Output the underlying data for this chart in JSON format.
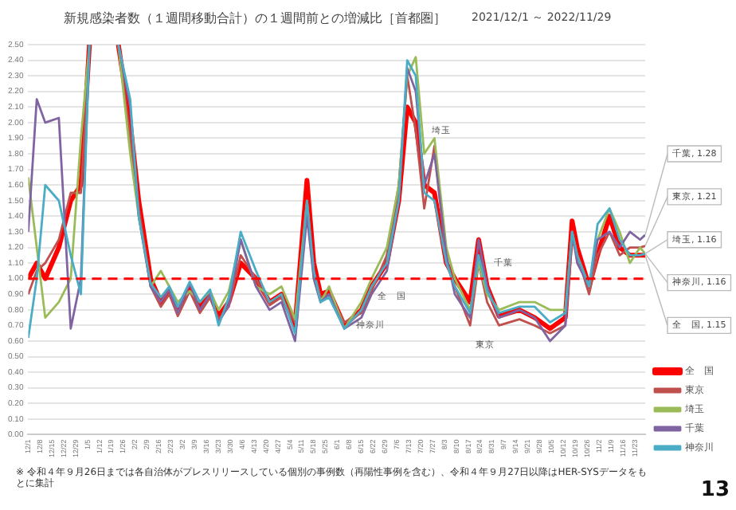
{
  "chart_data": {
    "type": "line",
    "title": "新規感染者数（１週間移動合計）の１週間前との増減比［首都圏］",
    "subtitle": "2021/12/1 ～ 2022/11/29",
    "x": [
      "2021-12-01",
      "2021-12-06",
      "2021-12-11",
      "2021-12-19",
      "2021-12-26",
      "2022-01-01",
      "2022-01-06",
      "2022-01-15",
      "2022-01-23",
      "2022-01-30",
      "2022-02-04",
      "2022-02-11",
      "2022-02-17",
      "2022-02-22",
      "2022-02-27",
      "2022-03-06",
      "2022-03-12",
      "2022-03-18",
      "2022-03-23",
      "2022-03-29",
      "2022-04-05",
      "2022-04-14",
      "2022-04-22",
      "2022-04-29",
      "2022-05-07",
      "2022-05-14",
      "2022-05-18",
      "2022-05-22",
      "2022-05-27",
      "2022-06-05",
      "2022-06-15",
      "2022-06-21",
      "2022-06-30",
      "2022-07-07",
      "2022-07-12",
      "2022-07-17",
      "2022-07-22",
      "2022-07-28",
      "2022-08-04",
      "2022-08-09",
      "2022-08-18",
      "2022-08-23",
      "2022-08-28",
      "2022-09-04",
      "2022-09-16",
      "2022-09-25",
      "2022-10-04",
      "2022-10-13",
      "2022-10-17",
      "2022-10-20",
      "2022-10-27",
      "2022-11-01",
      "2022-11-08",
      "2022-11-14",
      "2022-11-20",
      "2022-11-26",
      "2022-11-29"
    ],
    "series": [
      {
        "name": "全　国",
        "color": "#ff0000",
        "values": [
          1.0,
          1.1,
          1.0,
          1.2,
          1.5,
          1.6,
          2.5,
          null,
          2.5,
          2.0,
          1.5,
          1.0,
          0.85,
          0.92,
          0.8,
          0.95,
          0.82,
          0.9,
          0.76,
          0.85,
          1.1,
          1.0,
          0.85,
          0.9,
          0.7,
          1.63,
          1.1,
          0.9,
          0.92,
          0.7,
          0.8,
          0.95,
          1.1,
          1.5,
          2.1,
          2.0,
          1.6,
          1.55,
          1.1,
          1.0,
          0.85,
          1.25,
          0.95,
          0.76,
          0.8,
          0.75,
          0.68,
          0.75,
          1.37,
          1.2,
          0.95,
          1.15,
          1.4,
          1.2,
          1.15,
          1.15,
          1.15
        ]
      },
      {
        "name": "東京",
        "color": "#c0504d",
        "values": [
          0.9,
          1.05,
          1.1,
          1.25,
          1.55,
          1.55,
          2.5,
          null,
          2.5,
          1.9,
          1.45,
          0.95,
          0.82,
          0.9,
          0.76,
          0.92,
          0.78,
          0.88,
          0.74,
          0.82,
          1.15,
          1.0,
          0.83,
          0.88,
          0.72,
          1.45,
          1.05,
          0.88,
          0.9,
          0.72,
          0.78,
          0.92,
          1.15,
          1.6,
          2.3,
          1.95,
          1.45,
          1.85,
          1.1,
          0.95,
          0.7,
          1.1,
          0.85,
          0.7,
          0.74,
          0.7,
          0.65,
          0.7,
          1.25,
          1.15,
          0.9,
          1.15,
          1.3,
          1.15,
          1.2,
          1.2,
          1.21
        ]
      },
      {
        "name": "埼玉",
        "color": "#9bbb59",
        "values": [
          1.65,
          1.2,
          0.75,
          0.85,
          1.0,
          1.9,
          2.5,
          null,
          2.5,
          1.8,
          1.4,
          0.95,
          1.05,
          0.95,
          0.85,
          0.92,
          0.85,
          0.92,
          0.8,
          0.92,
          1.25,
          0.95,
          0.9,
          0.95,
          0.74,
          1.5,
          1.0,
          0.85,
          0.95,
          0.68,
          0.85,
          1.0,
          1.2,
          1.6,
          2.3,
          2.42,
          1.8,
          1.9,
          1.2,
          1.0,
          0.8,
          1.1,
          0.9,
          0.8,
          0.85,
          0.85,
          0.8,
          0.8,
          1.3,
          1.15,
          0.95,
          1.25,
          1.45,
          1.3,
          1.1,
          1.2,
          1.16
        ]
      },
      {
        "name": "千葉",
        "color": "#8064a2",
        "values": [
          1.3,
          2.15,
          2.0,
          2.03,
          0.68,
          1.0,
          2.5,
          null,
          2.5,
          2.1,
          1.4,
          0.95,
          0.85,
          0.93,
          0.78,
          0.97,
          0.8,
          0.9,
          0.72,
          0.83,
          1.25,
          0.95,
          0.8,
          0.85,
          0.6,
          1.4,
          1.0,
          0.85,
          0.9,
          0.68,
          0.75,
          0.9,
          1.05,
          1.5,
          2.35,
          2.2,
          1.6,
          1.8,
          1.15,
          0.9,
          0.75,
          1.25,
          0.95,
          0.75,
          0.8,
          0.75,
          0.6,
          0.7,
          1.3,
          1.1,
          0.95,
          1.25,
          1.3,
          1.2,
          1.3,
          1.25,
          1.28
        ]
      },
      {
        "name": "神奈川",
        "color": "#4bacc6",
        "values": [
          0.62,
          1.0,
          1.6,
          1.5,
          1.15,
          0.9,
          2.5,
          null,
          2.5,
          2.15,
          1.4,
          0.97,
          0.88,
          0.95,
          0.82,
          0.98,
          0.85,
          0.93,
          0.7,
          0.88,
          1.3,
          1.05,
          0.85,
          0.9,
          0.65,
          1.5,
          1.05,
          0.85,
          0.88,
          0.68,
          0.8,
          0.95,
          1.1,
          1.5,
          2.4,
          2.3,
          1.55,
          1.5,
          1.1,
          0.95,
          0.78,
          1.15,
          0.92,
          0.78,
          0.82,
          0.82,
          0.72,
          0.78,
          1.3,
          1.15,
          0.95,
          1.35,
          1.45,
          1.25,
          1.15,
          1.15,
          1.16
        ]
      }
    ],
    "xlim": [
      "2021-12-01",
      "2022-11-29"
    ],
    "xticks": [
      {
        "value": "2021-12-01",
        "label": "12/1"
      },
      {
        "value": "2021-12-08",
        "label": "12/8"
      },
      {
        "value": "2021-12-15",
        "label": "12/15"
      },
      {
        "value": "2021-12-22",
        "label": "12/22"
      },
      {
        "value": "2021-12-29",
        "label": "12/29"
      },
      {
        "value": "2022-01-05",
        "label": "1/5"
      },
      {
        "value": "2022-01-12",
        "label": "1/12"
      },
      {
        "value": "2022-01-19",
        "label": "1/19"
      },
      {
        "value": "2022-01-26",
        "label": "1/26"
      },
      {
        "value": "2022-02-02",
        "label": "2/2"
      },
      {
        "value": "2022-02-09",
        "label": "2/9"
      },
      {
        "value": "2022-02-16",
        "label": "2/16"
      },
      {
        "value": "2022-02-23",
        "label": "2/23"
      },
      {
        "value": "2022-03-02",
        "label": "3/2"
      },
      {
        "value": "2022-03-09",
        "label": "3/9"
      },
      {
        "value": "2022-03-16",
        "label": "3/16"
      },
      {
        "value": "2022-03-23",
        "label": "3/23"
      },
      {
        "value": "2022-03-30",
        "label": "3/30"
      },
      {
        "value": "2022-04-06",
        "label": "4/6"
      },
      {
        "value": "2022-04-13",
        "label": "4/13"
      },
      {
        "value": "2022-04-20",
        "label": "4/20"
      },
      {
        "value": "2022-04-27",
        "label": "4/27"
      },
      {
        "value": "2022-05-04",
        "label": "5/4"
      },
      {
        "value": "2022-05-11",
        "label": "5/11"
      },
      {
        "value": "2022-05-18",
        "label": "5/18"
      },
      {
        "value": "2022-05-25",
        "label": "5/25"
      },
      {
        "value": "2022-06-01",
        "label": "6/1"
      },
      {
        "value": "2022-06-08",
        "label": "6/8"
      },
      {
        "value": "2022-06-15",
        "label": "6/15"
      },
      {
        "value": "2022-06-22",
        "label": "6/22"
      },
      {
        "value": "2022-06-29",
        "label": "6/29"
      },
      {
        "value": "2022-07-06",
        "label": "7/6"
      },
      {
        "value": "2022-07-13",
        "label": "7/13"
      },
      {
        "value": "2022-07-20",
        "label": "7/20"
      },
      {
        "value": "2022-07-27",
        "label": "7/27"
      },
      {
        "value": "2022-08-03",
        "label": "8/3"
      },
      {
        "value": "2022-08-10",
        "label": "8/10"
      },
      {
        "value": "2022-08-17",
        "label": "8/17"
      },
      {
        "value": "2022-08-24",
        "label": "8/24"
      },
      {
        "value": "2022-08-31",
        "label": "8/31"
      },
      {
        "value": "2022-09-07",
        "label": "9/7"
      },
      {
        "value": "2022-09-14",
        "label": "9/14"
      },
      {
        "value": "2022-09-21",
        "label": "9/21"
      },
      {
        "value": "2022-09-28",
        "label": "9/28"
      },
      {
        "value": "2022-10-05",
        "label": "10/5"
      },
      {
        "value": "2022-10-12",
        "label": "10/12"
      },
      {
        "value": "2022-10-19",
        "label": "10/19"
      },
      {
        "value": "2022-10-26",
        "label": "10/26"
      },
      {
        "value": "2022-11-02",
        "label": "11/2"
      },
      {
        "value": "2022-11-09",
        "label": "11/9"
      },
      {
        "value": "2022-11-16",
        "label": "11/16"
      },
      {
        "value": "2022-11-23",
        "label": "11/23"
      }
    ],
    "ylim": [
      0,
      2.5
    ],
    "yticks": [
      {
        "value": 0,
        "label": "0.00"
      },
      {
        "value": 0.1,
        "label": "0.10"
      },
      {
        "value": 0.2,
        "label": "0.20"
      },
      {
        "value": 0.3,
        "label": "0.30"
      },
      {
        "value": 0.4,
        "label": "0.40"
      },
      {
        "value": 0.5,
        "label": "0.50"
      },
      {
        "value": 0.6,
        "label": "0.60"
      },
      {
        "value": 0.7,
        "label": "0.70"
      },
      {
        "value": 0.8,
        "label": "0.80"
      },
      {
        "value": 0.9,
        "label": "0.90"
      },
      {
        "value": 1,
        "label": "1.00"
      },
      {
        "value": 1.1,
        "label": "1.10"
      },
      {
        "value": 1.2,
        "label": "1.20"
      },
      {
        "value": 1.3,
        "label": "1.30"
      },
      {
        "value": 1.4,
        "label": "1.40"
      },
      {
        "value": 1.5,
        "label": "1.50"
      },
      {
        "value": 1.6,
        "label": "1.60"
      },
      {
        "value": 1.7,
        "label": "1.70"
      },
      {
        "value": 1.8,
        "label": "1.80"
      },
      {
        "value": 1.9,
        "label": "1.90"
      },
      {
        "value": 2,
        "label": "2.00"
      },
      {
        "value": 2.1,
        "label": "2.10"
      },
      {
        "value": 2.2,
        "label": "2.20"
      },
      {
        "value": 2.3,
        "label": "2.30"
      },
      {
        "value": 2.4,
        "label": "2.40"
      },
      {
        "value": 2.5,
        "label": "2.50"
      }
    ],
    "ref_lines": [
      {
        "axis": "y",
        "value": 1,
        "color": "#ff0000",
        "line_style": "dashed"
      }
    ],
    "grid": "y",
    "legend": "bottom right",
    "annotations": [
      "埼玉",
      "千葉",
      "全　国",
      "神奈川",
      "東京",
      {
        "text": "千葉, 1.28",
        "x": "2022-11-29",
        "y": 1.28
      },
      {
        "text": "東京, 1.21",
        "x": "2022-11-29",
        "y": 1.21
      },
      {
        "text": "埼玉, 1.16",
        "x": "2022-11-29",
        "y": 1.16
      },
      {
        "text": "神奈川, 1.16",
        "x": "2022-11-29",
        "y": 1.16
      },
      {
        "text": "全　国, 1.15",
        "x": "2022-11-29",
        "y": 1.15
      },
      "※ 令和４年９月26日までは各自治体がプレスリリースしている個別の事例数（再陽性事例を含む）、令和４年９月27日以降はHER-SYSデータをもとに集計",
      "13"
    ]
  }
}
